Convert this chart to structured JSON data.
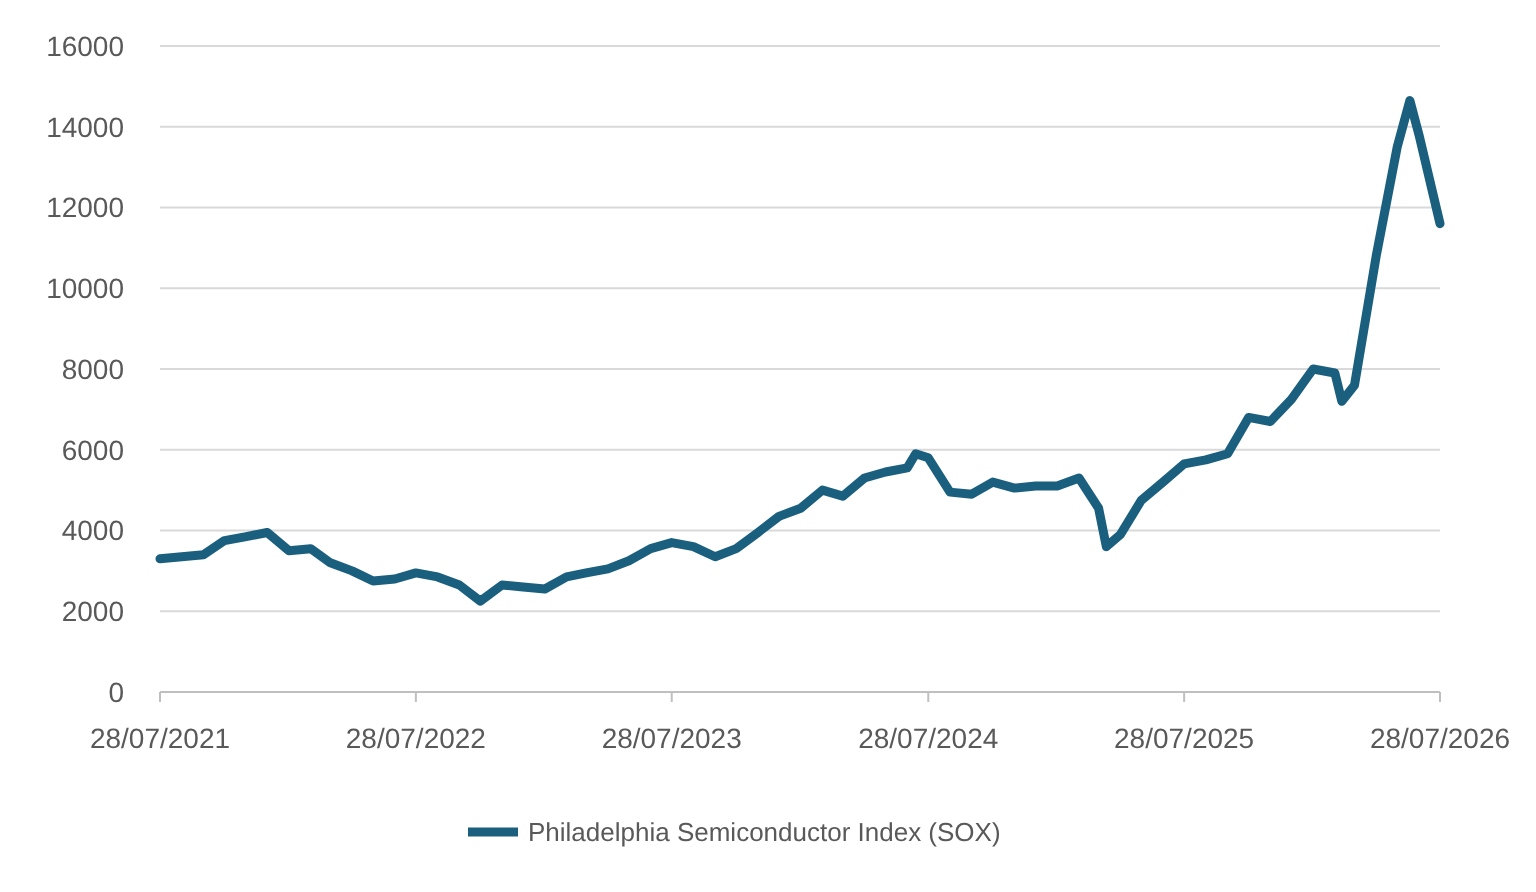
{
  "chart_data": {
    "type": "line",
    "x": [
      "2021-07-28",
      "2021-08-28",
      "2021-09-28",
      "2021-10-28",
      "2021-11-28",
      "2021-12-28",
      "2022-01-28",
      "2022-02-28",
      "2022-03-28",
      "2022-04-28",
      "2022-05-28",
      "2022-06-28",
      "2022-07-28",
      "2022-08-28",
      "2022-09-28",
      "2022-10-28",
      "2022-11-28",
      "2022-12-28",
      "2023-01-28",
      "2023-02-28",
      "2023-03-28",
      "2023-04-28",
      "2023-05-28",
      "2023-06-28",
      "2023-07-28",
      "2023-08-28",
      "2023-09-28",
      "2023-10-28",
      "2023-11-28",
      "2023-12-28",
      "2024-01-28",
      "2024-02-28",
      "2024-03-28",
      "2024-04-28",
      "2024-05-28",
      "2024-06-28",
      "2024-07-10",
      "2024-07-28",
      "2024-08-28",
      "2024-09-28",
      "2024-10-28",
      "2024-11-28",
      "2024-12-28",
      "2025-01-28",
      "2025-02-28",
      "2025-03-28",
      "2025-04-08",
      "2025-04-28",
      "2025-05-28",
      "2025-06-28",
      "2025-07-28",
      "2025-08-28",
      "2025-09-28",
      "2025-10-28",
      "2025-11-28",
      "2025-12-28",
      "2026-01-28",
      "2026-02-28",
      "2026-03-10",
      "2026-03-28",
      "2026-04-28",
      "2026-05-28",
      "2026-06-15",
      "2026-06-28",
      "2026-07-28"
    ],
    "series": [
      {
        "name": "Philadelphia Semiconductor Index (SOX)",
        "color": "#1b5f7f",
        "values": [
          3300,
          3350,
          3400,
          3750,
          3850,
          3950,
          3500,
          3550,
          3200,
          3000,
          2750,
          2800,
          2950,
          2850,
          2650,
          2250,
          2650,
          2600,
          2550,
          2850,
          2950,
          3050,
          3250,
          3550,
          3700,
          3600,
          3350,
          3550,
          3950,
          4350,
          4550,
          5000,
          4850,
          5300,
          5450,
          5550,
          5900,
          5800,
          4950,
          4900,
          5200,
          5050,
          5100,
          5100,
          5300,
          4550,
          3600,
          3900,
          4750,
          5200,
          5650,
          5750,
          5900,
          6800,
          6700,
          7250,
          8000,
          7900,
          7200,
          7600,
          10800,
          13500,
          14650,
          13800,
          11600
        ]
      }
    ],
    "xlim": [
      "2021-07-28",
      "2026-07-28"
    ],
    "xticks": [
      {
        "value": "2021-07-28",
        "label": "28/07/2021"
      },
      {
        "value": "2022-07-28",
        "label": "28/07/2022"
      },
      {
        "value": "2023-07-28",
        "label": "28/07/2023"
      },
      {
        "value": "2024-07-28",
        "label": "28/07/2024"
      },
      {
        "value": "2025-07-28",
        "label": "28/07/2025"
      },
      {
        "value": "2026-07-28",
        "label": "28/07/2026"
      }
    ],
    "ylim": [
      0,
      16000
    ],
    "yticks": [
      0,
      2000,
      4000,
      6000,
      8000,
      10000,
      12000,
      14000,
      16000
    ],
    "grid": "y",
    "legend": "bottom",
    "marker": "none",
    "line_style": "solid"
  }
}
